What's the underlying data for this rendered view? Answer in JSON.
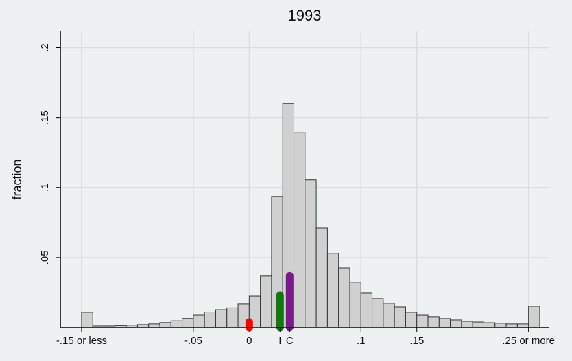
{
  "chart_data": {
    "type": "histogram",
    "title": "1993",
    "y_label": "fraction",
    "bins": [
      -0.15,
      -0.14,
      -0.13,
      -0.12,
      -0.11,
      -0.1,
      -0.09,
      -0.08,
      -0.07,
      -0.06,
      -0.05,
      -0.04,
      -0.03,
      -0.02,
      -0.01,
      0,
      0.01,
      0.02,
      0.03,
      0.04,
      0.05,
      0.06,
      0.07,
      0.08,
      0.09,
      0.1,
      0.11,
      0.12,
      0.13,
      0.14,
      0.15,
      0.16,
      0.17,
      0.18,
      0.19,
      0.2,
      0.21,
      0.22,
      0.23,
      0.24,
      0.25,
      0.26
    ],
    "values": [
      0.0108,
      0.001,
      0.001,
      0.0013,
      0.0016,
      0.002,
      0.0025,
      0.0035,
      0.0048,
      0.0065,
      0.0088,
      0.011,
      0.0127,
      0.014,
      0.0167,
      0.0225,
      0.0368,
      0.0936,
      0.16,
      0.1397,
      0.1054,
      0.071,
      0.053,
      0.0426,
      0.0324,
      0.0245,
      0.0206,
      0.0172,
      0.0147,
      0.0108,
      0.0088,
      0.0074,
      0.0064,
      0.0054,
      0.0044,
      0.0039,
      0.0034,
      0.003,
      0.0025,
      0.0025,
      0.0152
    ],
    "color": "#d0d0d0",
    "markers": [
      {
        "x": 0,
        "value": 0.004,
        "color": "#ff0000"
      },
      {
        "label": "I",
        "x": 0.0276,
        "value": 0.023,
        "color": "#107a10"
      },
      {
        "label": "C",
        "x": 0.0362,
        "value": 0.037,
        "color": "#7a1a8a"
      }
    ],
    "xlim": [
      -0.169,
      0.268
    ],
    "ylim": [
      0,
      0.212
    ],
    "xticks": [
      {
        "value": -0.15,
        "label": "-.15 or less"
      },
      {
        "value": -0.05,
        "label": "-.05"
      },
      0,
      {
        "value": 0.1,
        "label": ".1"
      },
      {
        "value": 0.15,
        "label": ".15"
      },
      {
        "value": 0.25,
        "label": ".25 or more"
      }
    ],
    "yticks": [
      {
        "value": 0.05,
        "label": ".05"
      },
      {
        "value": 0.1,
        "label": ".1"
      },
      {
        "value": 0.15,
        "label": ".15"
      },
      {
        "value": 0.2,
        "label": ".2"
      }
    ],
    "grid": true
  }
}
